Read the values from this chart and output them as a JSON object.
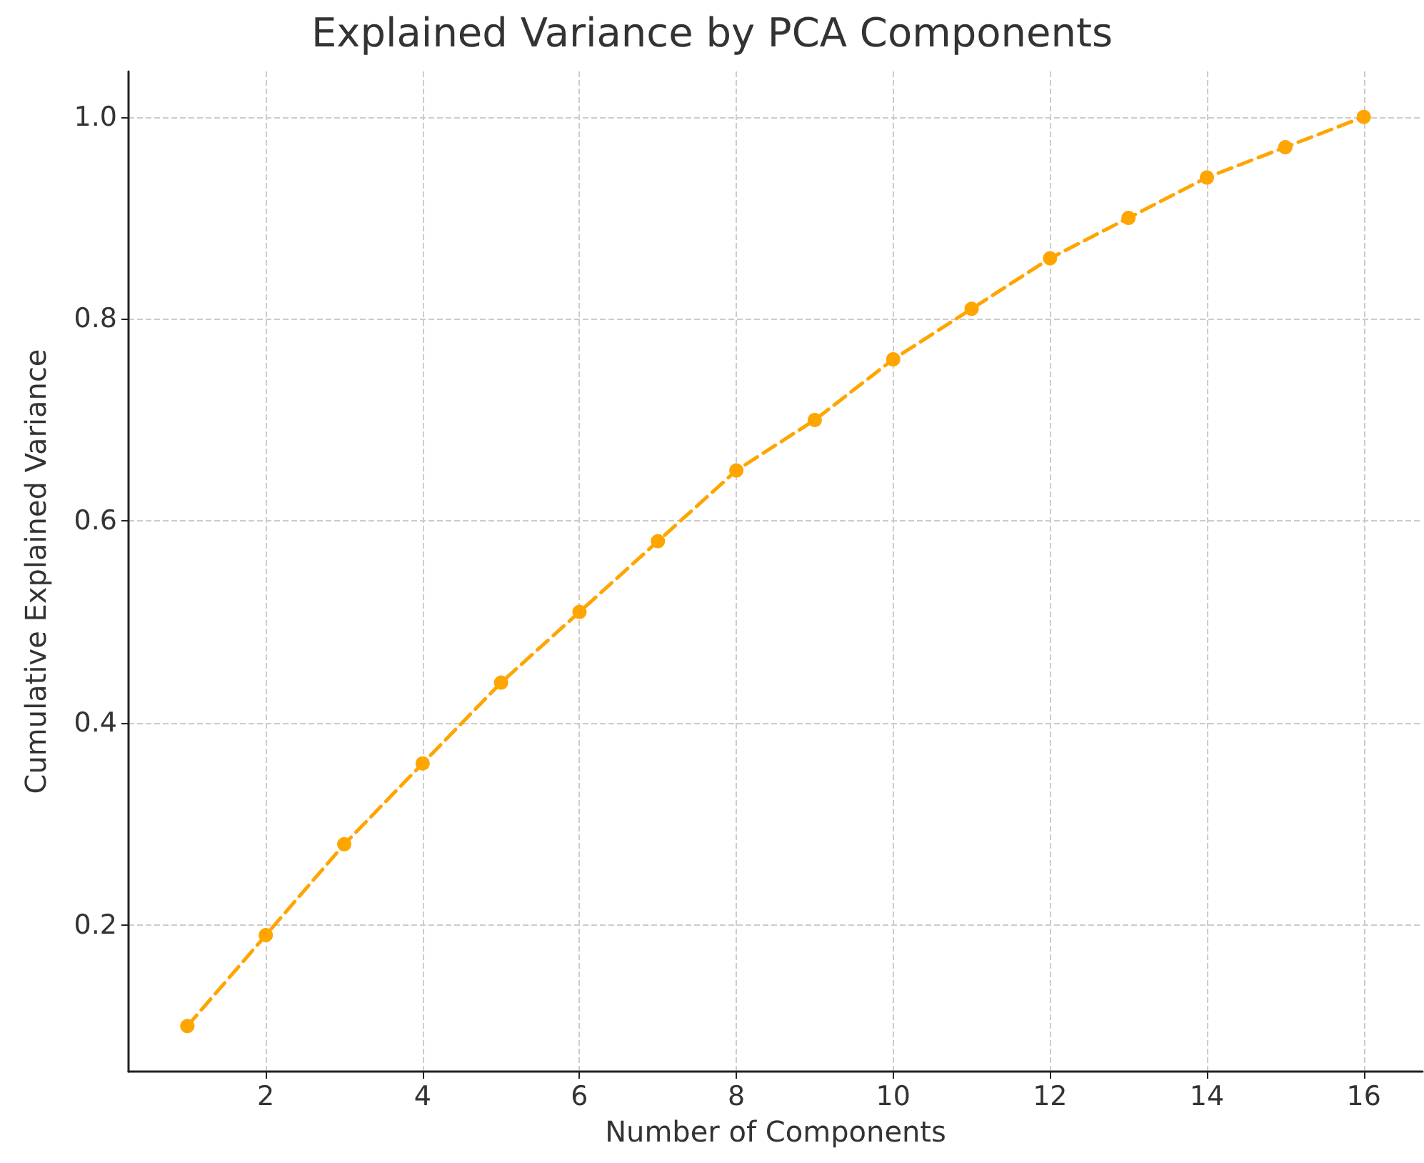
{
  "chart_data": {
    "type": "line",
    "title": "Explained Variance by PCA Components",
    "xlabel": "Number of Components",
    "ylabel": "Cumulative Explained Variance",
    "x": [
      1,
      2,
      3,
      4,
      5,
      6,
      7,
      8,
      9,
      10,
      11,
      12,
      13,
      14,
      15,
      16
    ],
    "series": [
      {
        "color": "#ffa500",
        "values": [
          0.1,
          0.19,
          0.28,
          0.36,
          0.44,
          0.51,
          0.58,
          0.65,
          0.7,
          0.76,
          0.81,
          0.86,
          0.9,
          0.94,
          0.97,
          1.0
        ]
      }
    ],
    "xlim": [
      0.25,
      16.75
    ],
    "ylim": [
      0.055,
      1.045
    ],
    "xticks": [
      2,
      4,
      6,
      8,
      10,
      12,
      14,
      16
    ],
    "yticks": [
      {
        "value": 0.2,
        "label": "0.2"
      },
      {
        "value": 0.4,
        "label": "0.4"
      },
      {
        "value": 0.6,
        "label": "0.6"
      },
      {
        "value": 0.8,
        "label": "0.8"
      },
      {
        "value": 1,
        "label": "1.0"
      }
    ],
    "grid": true,
    "marker": "circle",
    "line_style": "dashed"
  }
}
